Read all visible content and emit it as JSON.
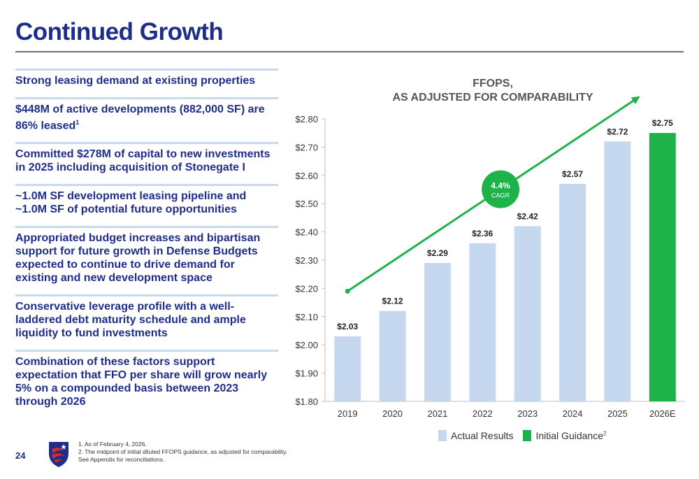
{
  "page": {
    "title": "Continued Growth",
    "page_number": "24"
  },
  "bullets": [
    {
      "text": "Strong leasing demand at existing properties",
      "sup": ""
    },
    {
      "text": "$448M of active developments (882,000 SF) are 86% leased",
      "sup": "1"
    },
    {
      "text": "Committed $278M of capital to new investments in 2025 including acquisition of Stonegate I",
      "sup": ""
    },
    {
      "text": "~1.0M SF development leasing pipeline and ~1.0M SF of potential future opportunities",
      "sup": ""
    },
    {
      "text": "Appropriated budget increases and bipartisan support for future growth in Defense Budgets expected to continue to drive demand for existing and new development space",
      "sup": ""
    },
    {
      "text": "Conservative leverage profile with a well-laddered debt maturity schedule and ample liquidity to fund investments",
      "sup": ""
    },
    {
      "text": "Combination of these factors support expectation that FFO per share will grow nearly 5% on a compounded basis between 2023 through 2026",
      "sup": ""
    }
  ],
  "chart_data": {
    "type": "bar",
    "title_line1": "FFOPS,",
    "title_line2": "AS ADJUSTED FOR COMPARABILITY",
    "categories": [
      "2019",
      "2020",
      "2021",
      "2022",
      "2023",
      "2024",
      "2025",
      "2026E"
    ],
    "values": [
      2.03,
      2.12,
      2.29,
      2.36,
      2.42,
      2.57,
      2.72,
      2.75
    ],
    "data_labels": [
      "$2.03",
      "$2.12",
      "$2.29",
      "$2.36",
      "$2.42",
      "$2.57",
      "$2.72",
      "$2.75"
    ],
    "bar_series": [
      "actual",
      "actual",
      "actual",
      "actual",
      "actual",
      "actual",
      "actual",
      "guidance"
    ],
    "ylim": [
      1.8,
      2.8
    ],
    "yticks": [
      1.8,
      1.9,
      2.0,
      2.1,
      2.2,
      2.3,
      2.4,
      2.5,
      2.6,
      2.7,
      2.8
    ],
    "ytick_labels": [
      "$1.80",
      "$1.90",
      "$2.00",
      "$2.10",
      "$2.20",
      "$2.30",
      "$2.40",
      "$2.50",
      "$2.60",
      "$2.70",
      "$2.80"
    ],
    "grid": false,
    "legend_position": "bottom-right",
    "legend": [
      {
        "label": "Actual Results",
        "sup": "",
        "color": "#c5d8f0"
      },
      {
        "label": "Initial Guidance",
        "sup": "2",
        "color": "#1db348"
      }
    ],
    "trend_annotation": {
      "value": "4.4%",
      "label": "CAGR",
      "color": "#1db348"
    }
  },
  "colors": {
    "actual": "#c5d8f0",
    "guidance": "#1db348",
    "title": "#1e2d8c",
    "trend": "#1db348"
  },
  "footnotes": [
    "1.  As of February 4, 2026.",
    "2. The midpoint of initial diluted FFOPS guidance, as adjusted for comparability.",
    "See Appendix for reconciliations."
  ]
}
